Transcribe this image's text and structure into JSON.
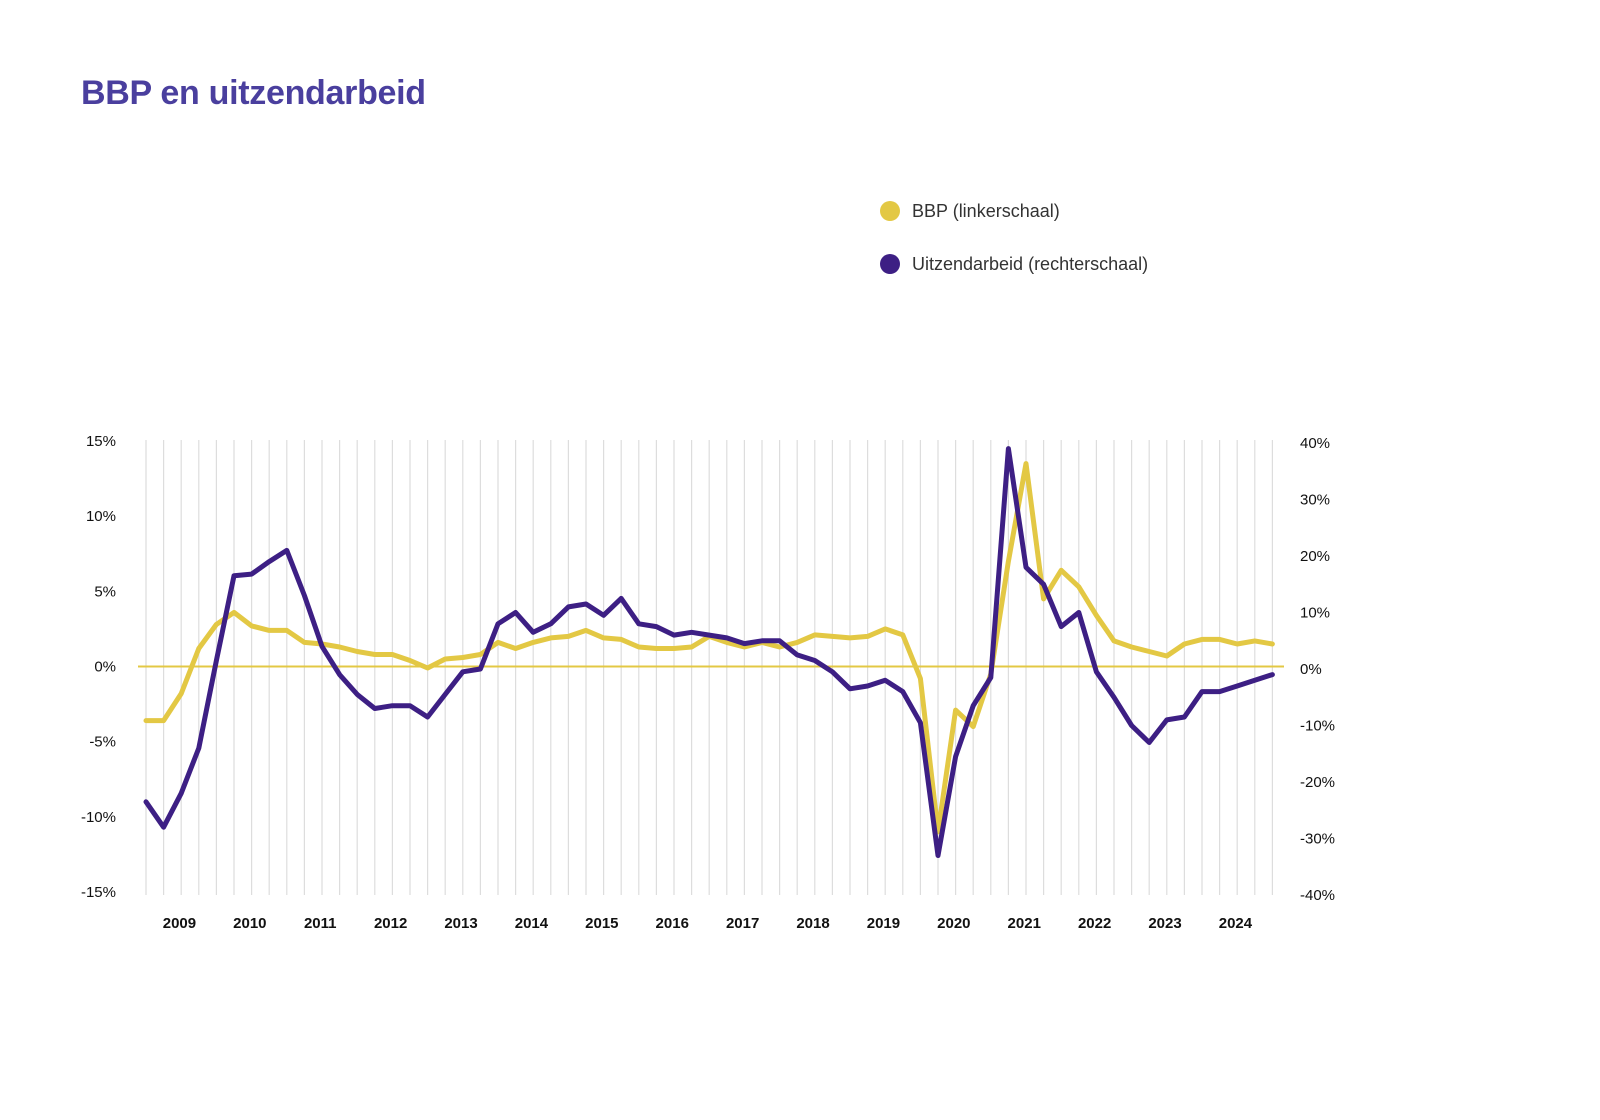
{
  "title": "BBP en uitzendarbeid",
  "colors": {
    "bbp": "#e3c844",
    "uitzend": "#3d1f84",
    "title": "#4a3f9e",
    "grid": "#dddddd"
  },
  "chart_data": {
    "type": "line",
    "title": "BBP en uitzendarbeid",
    "legend_position": "top-right",
    "grid": "vertical lines per quarter",
    "x_tick_labels": [
      "2009",
      "2010",
      "2011",
      "2012",
      "2013",
      "2014",
      "2015",
      "2016",
      "2017",
      "2018",
      "2019",
      "2020",
      "2021",
      "2022",
      "2023",
      "2024"
    ],
    "x": [
      "2009-Q1",
      "2009-Q2",
      "2009-Q3",
      "2009-Q4",
      "2010-Q1",
      "2010-Q2",
      "2010-Q3",
      "2010-Q4",
      "2011-Q1",
      "2011-Q2",
      "2011-Q3",
      "2011-Q4",
      "2012-Q1",
      "2012-Q2",
      "2012-Q3",
      "2012-Q4",
      "2013-Q1",
      "2013-Q2",
      "2013-Q3",
      "2013-Q4",
      "2014-Q1",
      "2014-Q2",
      "2014-Q3",
      "2014-Q4",
      "2015-Q1",
      "2015-Q2",
      "2015-Q3",
      "2015-Q4",
      "2016-Q1",
      "2016-Q2",
      "2016-Q3",
      "2016-Q4",
      "2017-Q1",
      "2017-Q2",
      "2017-Q3",
      "2017-Q4",
      "2018-Q1",
      "2018-Q2",
      "2018-Q3",
      "2018-Q4",
      "2019-Q1",
      "2019-Q2",
      "2019-Q3",
      "2019-Q4",
      "2020-Q1",
      "2020-Q2",
      "2020-Q3",
      "2020-Q4",
      "2021-Q1",
      "2021-Q2",
      "2021-Q3",
      "2021-Q4",
      "2022-Q1",
      "2022-Q2",
      "2022-Q3",
      "2022-Q4",
      "2023-Q1",
      "2023-Q2",
      "2023-Q3",
      "2023-Q4",
      "2024-Q1",
      "2024-Q2",
      "2024-Q3",
      "2024-Q4",
      "2025-Q1"
    ],
    "y_left": {
      "ticks": [
        "15%",
        "10%",
        "5%",
        "0%",
        "-5%",
        "-10%",
        "-15%"
      ],
      "ylim": [
        -15,
        15
      ]
    },
    "y_right": {
      "ticks": [
        "40%",
        "30%",
        "20%",
        "10%",
        "0%",
        "-10%",
        "-20%",
        "-30%",
        "-40%"
      ],
      "ylim": [
        -40,
        40
      ]
    },
    "series": [
      {
        "name": "BBP (linkerschaal)",
        "axis": "left",
        "color": "#e3c844",
        "values": [
          -3.6,
          -3.6,
          -1.8,
          1.2,
          2.8,
          3.6,
          2.7,
          2.4,
          2.4,
          1.6,
          1.5,
          1.3,
          1.0,
          0.8,
          0.8,
          0.4,
          -0.1,
          0.5,
          0.6,
          0.8,
          1.6,
          1.2,
          1.6,
          1.9,
          2.0,
          2.4,
          1.9,
          1.8,
          1.3,
          1.2,
          1.2,
          1.3,
          2.0,
          1.6,
          1.3,
          1.6,
          1.3,
          1.6,
          2.1,
          2.0,
          1.9,
          2.0,
          2.5,
          2.1,
          -0.8,
          -11.0,
          -2.9,
          -4.0,
          -0.5,
          7.0,
          13.5,
          4.5,
          6.4,
          5.3,
          3.4,
          1.7,
          1.3,
          1.0,
          0.7,
          1.5,
          1.8,
          1.8,
          1.5,
          1.7,
          1.5
        ]
      },
      {
        "name": "Uitzendarbeid (rechterschaal)",
        "axis": "right",
        "color": "#3d1f84",
        "values": [
          -23.5,
          -28,
          -22,
          -14,
          1.5,
          16.5,
          16.8,
          19,
          21,
          13,
          4,
          -1,
          -4.5,
          -7,
          -6.5,
          -6.5,
          -8.5,
          -4.5,
          -0.5,
          0,
          8,
          10,
          6.5,
          8,
          11,
          11.5,
          9.5,
          12.5,
          8,
          7.5,
          6,
          6.5,
          6,
          5.5,
          4.5,
          5,
          5,
          2.5,
          1.5,
          -0.5,
          -3.5,
          -3,
          -2,
          -4,
          -9.5,
          -33,
          -15.5,
          -6.5,
          -1.5,
          39,
          18,
          15,
          7.5,
          10,
          -0.5,
          -5,
          -10,
          -13,
          -9,
          -8.5,
          -4,
          -4,
          -3,
          -2,
          -1
        ]
      }
    ]
  },
  "legend": [
    {
      "label": "BBP (linkerschaal)",
      "color": "#e3c844"
    },
    {
      "label": "Uitzendarbeid (rechterschaal)",
      "color": "#3d1f84"
    }
  ]
}
